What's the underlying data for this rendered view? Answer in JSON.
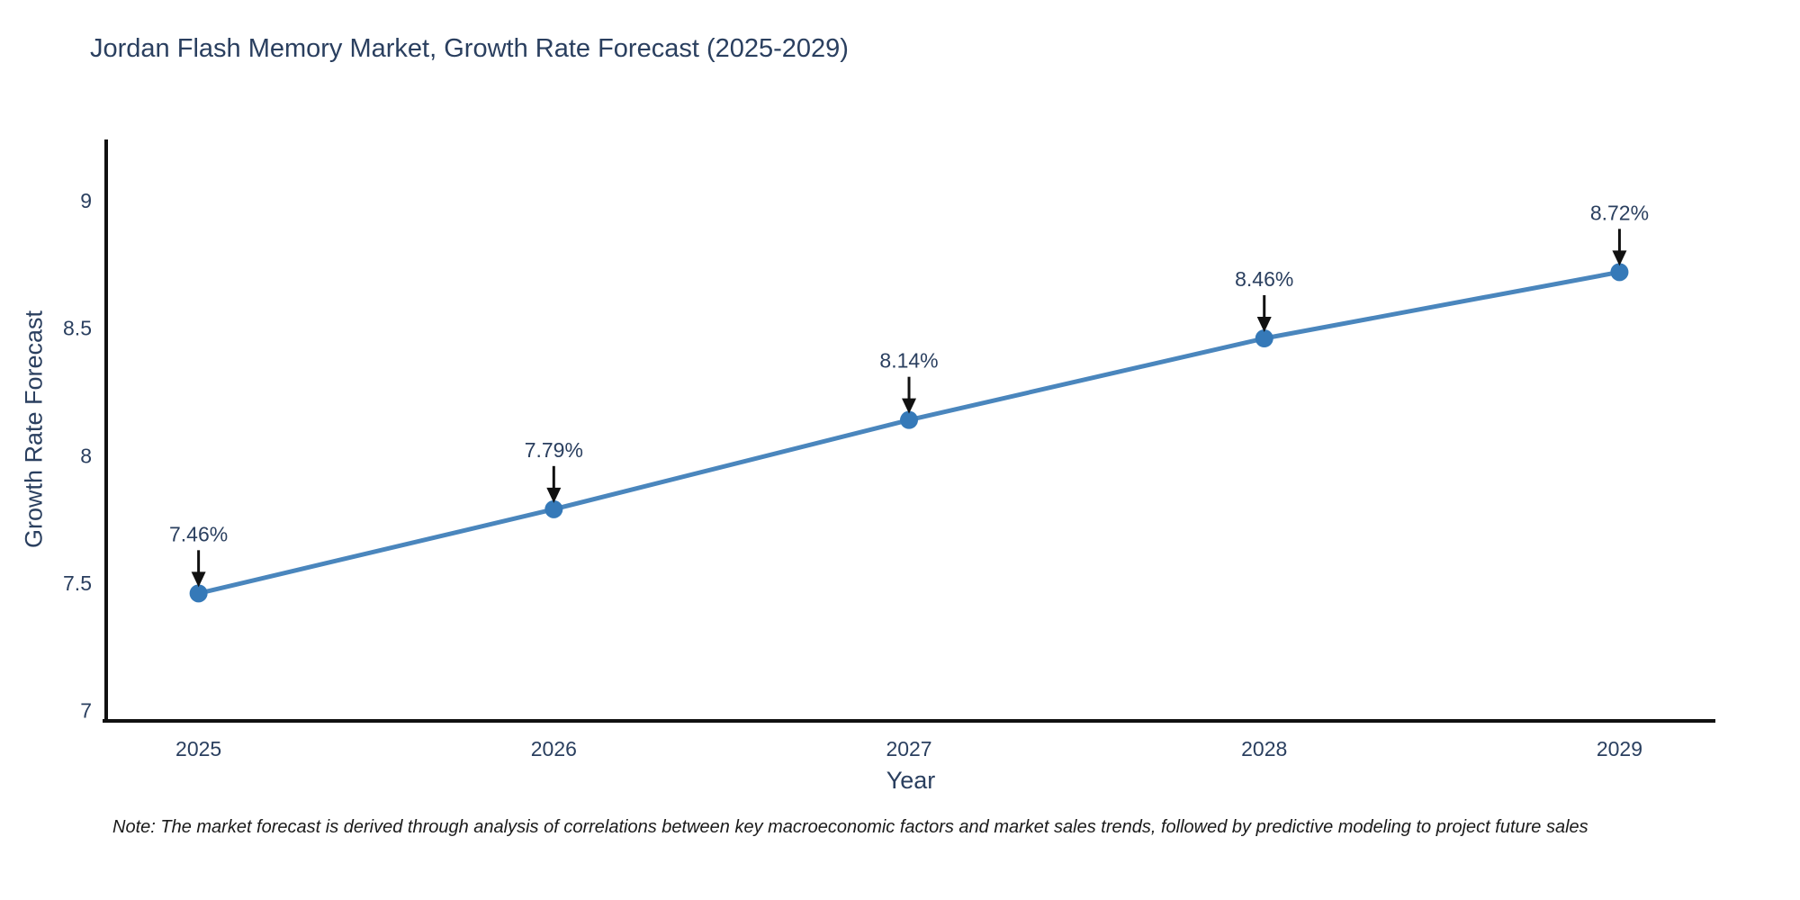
{
  "title": "Jordan Flash Memory Market, Growth Rate Forecast (2025-2029)",
  "note": "Note: The market forecast is derived through analysis of correlations between key macroeconomic factors and market sales trends, followed by predictive modeling to project future sales",
  "chart_data": {
    "type": "line",
    "title": "Jordan Flash Memory Market, Growth Rate Forecast (2025-2029)",
    "xlabel": "Year",
    "ylabel": "Growth Rate Forecast",
    "x": [
      2025,
      2026,
      2027,
      2028,
      2029
    ],
    "series": [
      {
        "name": "Growth Rate Forecast",
        "values": [
          7.46,
          7.79,
          8.14,
          8.46,
          8.72
        ]
      }
    ],
    "point_labels": [
      "7.46%",
      "7.79%",
      "8.14%",
      "8.46%",
      "8.72%"
    ],
    "xticks": [
      2025,
      2026,
      2027,
      2028,
      2029
    ],
    "yticks": [
      7,
      7.5,
      8,
      8.5,
      9
    ],
    "xlim": [
      2024.74,
      2029.27
    ],
    "ylim": [
      6.96,
      9.24
    ],
    "grid": false,
    "legend_position": "none",
    "line_color": "#4a86bd",
    "marker_color": "#3579b8",
    "annotation_color": "#111111",
    "axis_color": "#111111",
    "text_color": "#2a3f5f"
  }
}
